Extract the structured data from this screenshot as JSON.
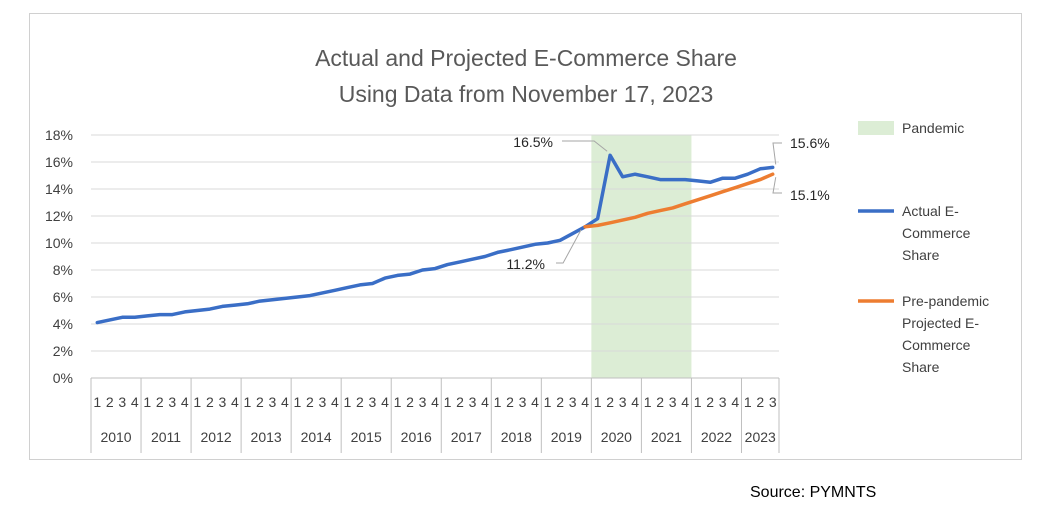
{
  "source": "Source: PYMNTS",
  "chart_data": {
    "type": "line",
    "title_line1": "Actual and Projected E-Commerce Share",
    "title_line2": "Using Data from November 17, 2023",
    "ylim": [
      0,
      18
    ],
    "y_ticks": [
      "0%",
      "2%",
      "4%",
      "6%",
      "8%",
      "10%",
      "12%",
      "14%",
      "16%",
      "18%"
    ],
    "years": [
      "2010",
      "2011",
      "2012",
      "2013",
      "2014",
      "2015",
      "2016",
      "2017",
      "2018",
      "2019",
      "2020",
      "2021",
      "2022",
      "2023"
    ],
    "quarters_per_year": [
      4,
      4,
      4,
      4,
      4,
      4,
      4,
      4,
      4,
      4,
      4,
      4,
      4,
      3
    ],
    "pandemic": {
      "label": "Pandemic",
      "start_index": 40,
      "end_index": 48,
      "color": "#dcedd5"
    },
    "series": [
      {
        "name": "Actual E-Commerce Share",
        "legend_lines": [
          "Actual E-",
          "Commerce",
          "Share"
        ],
        "color": "#3a6ec6",
        "start_index": 0,
        "values": [
          4.1,
          4.3,
          4.5,
          4.5,
          4.6,
          4.7,
          4.7,
          4.9,
          5.0,
          5.1,
          5.3,
          5.4,
          5.5,
          5.7,
          5.8,
          5.9,
          6.0,
          6.1,
          6.3,
          6.5,
          6.7,
          6.9,
          7.0,
          7.4,
          7.6,
          7.7,
          8.0,
          8.1,
          8.4,
          8.6,
          8.8,
          9.0,
          9.3,
          9.5,
          9.7,
          9.9,
          10.0,
          10.2,
          10.7,
          11.2,
          11.8,
          16.5,
          14.9,
          15.1,
          14.9,
          14.7,
          14.7,
          14.7,
          14.6,
          14.5,
          14.8,
          14.8,
          15.1,
          15.5,
          15.6
        ]
      },
      {
        "name": "Pre-pandemic Projected E-Commerce Share",
        "legend_lines": [
          "Pre-pandemic",
          "Projected E-",
          "Commerce",
          "Share"
        ],
        "color": "#ed7d31",
        "start_index": 39,
        "values": [
          11.2,
          11.3,
          11.5,
          11.7,
          11.9,
          12.2,
          12.4,
          12.6,
          12.9,
          13.2,
          13.5,
          13.8,
          14.1,
          14.4,
          14.7,
          15.1
        ]
      }
    ],
    "annotations": [
      {
        "text": "16.5%",
        "series": 0,
        "index": 41
      },
      {
        "text": "11.2%",
        "series": 0,
        "index": 39
      },
      {
        "text": "15.6%",
        "series": 0,
        "index": 54
      },
      {
        "text": "15.1%",
        "series": 1,
        "index": 15
      }
    ]
  }
}
